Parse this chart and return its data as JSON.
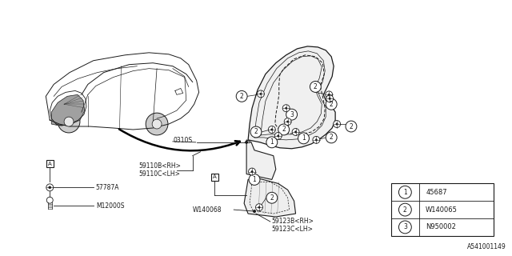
{
  "diagram_id": "A541001149",
  "bg_color": "#ffffff",
  "line_color": "#1a1a1a",
  "legend_items": [
    {
      "num": "1",
      "code": "45687"
    },
    {
      "num": "2",
      "code": "W140065"
    },
    {
      "num": "3",
      "code": "N950002"
    }
  ]
}
